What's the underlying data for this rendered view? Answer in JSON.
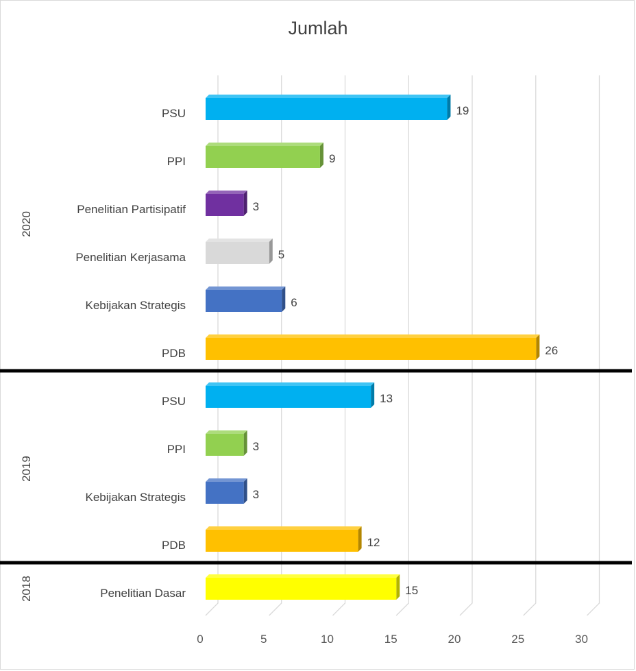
{
  "chart_data": {
    "type": "bar",
    "orientation": "horizontal",
    "style": "3d",
    "title": "Jumlah",
    "xlim": [
      0,
      30
    ],
    "x_ticks": [
      0,
      5,
      10,
      15,
      20,
      25,
      30
    ],
    "grid": true,
    "legend": "none",
    "groups": [
      {
        "name": "2020",
        "items": [
          {
            "label": "PSU",
            "value": 19,
            "color": "#00b0f0"
          },
          {
            "label": "PPI",
            "value": 9,
            "color": "#92d050"
          },
          {
            "label": "Penelitian Partisipatif",
            "value": 3,
            "color": "#7030a0"
          },
          {
            "label": "Penelitian Kerjasama",
            "value": 5,
            "color": "#d9d9d9"
          },
          {
            "label": "Kebijakan Strategis",
            "value": 6,
            "color": "#4472c4"
          },
          {
            "label": "PDB",
            "value": 26,
            "color": "#ffc000"
          }
        ]
      },
      {
        "name": "2019",
        "items": [
          {
            "label": "PSU",
            "value": 13,
            "color": "#00b0f0"
          },
          {
            "label": "PPI",
            "value": 3,
            "color": "#92d050"
          },
          {
            "label": "Kebijakan Strategis",
            "value": 3,
            "color": "#4472c4"
          },
          {
            "label": "PDB",
            "value": 12,
            "color": "#ffc000"
          }
        ]
      },
      {
        "name": "2018",
        "items": [
          {
            "label": "Penelitian Dasar",
            "value": 15,
            "color": "#ffff00"
          }
        ]
      }
    ]
  }
}
